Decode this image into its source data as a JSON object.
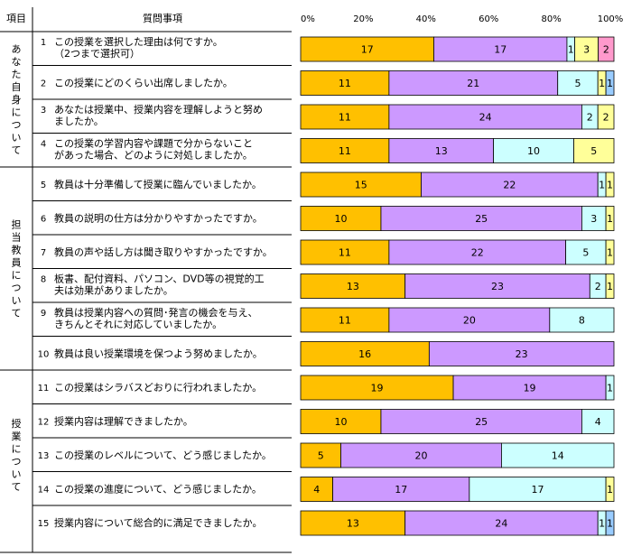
{
  "header": {
    "col_item": "項目",
    "col_question": "質問事項"
  },
  "categories": [
    {
      "label": "あなた自身について",
      "rows": [
        0,
        3
      ]
    },
    {
      "label": "担当教員について",
      "rows": [
        4,
        9
      ]
    },
    {
      "label": "授業について",
      "rows": [
        10,
        14
      ]
    }
  ],
  "questions": [
    {
      "num": "1",
      "lines": [
        "この授業を選択した理由は何ですか。",
        "（2つまで選択可）"
      ]
    },
    {
      "num": "2",
      "lines": [
        "この授業にどのくらい出席しましたか。"
      ]
    },
    {
      "num": "3",
      "lines": [
        "あなたは授業中、授業内容を理解しようと努め",
        "ましたか。"
      ]
    },
    {
      "num": "4",
      "lines": [
        "この授業の学習内容や課題で分からないこと",
        "があった場合、どのように対処しましたか。"
      ]
    },
    {
      "num": "5",
      "lines": [
        "教員は十分準備して授業に臨んでいましたか。"
      ]
    },
    {
      "num": "6",
      "lines": [
        "教員の説明の仕方は分かりやすかったですか。"
      ]
    },
    {
      "num": "7",
      "lines": [
        "教員の声や話し方は聞き取りやすかったですか。"
      ]
    },
    {
      "num": "8",
      "lines": [
        "板書、配付資料、パソコン、DVD等の視覚的工",
        "夫は効果がありましたか。"
      ]
    },
    {
      "num": "9",
      "lines": [
        "教員は授業内容への質問･発言の機会を与え、",
        "きちんとそれに対応していましたか。"
      ]
    },
    {
      "num": "10",
      "lines": [
        "教員は良い授業環境を保つよう努めましたか。"
      ]
    },
    {
      "num": "11",
      "lines": [
        "この授業はシラバスどおりに行われましたか。"
      ]
    },
    {
      "num": "12",
      "lines": [
        "授業内容は理解できましたか。"
      ]
    },
    {
      "num": "13",
      "lines": [
        "この授業のレベルについて、どう感じましたか。"
      ]
    },
    {
      "num": "14",
      "lines": [
        "この授業の進度について、どう感じましたか。"
      ]
    },
    {
      "num": "15",
      "lines": [
        "授業内容について総合的に満足できましたか。"
      ]
    }
  ],
  "chart_data": {
    "type": "bar",
    "orientation": "horizontal",
    "stacked": true,
    "normalized": "percent",
    "x_ticks": [
      "0%",
      "20%",
      "40%",
      "60%",
      "80%",
      "100%"
    ],
    "xlim": [
      0,
      100
    ],
    "colors": [
      "#FFC000",
      "#CC99FF",
      "#CCFFFF",
      "#FFFF99",
      "#FF99CC",
      "#99CCFF"
    ],
    "rows": [
      [
        17,
        17,
        1,
        3,
        2
      ],
      [
        11,
        21,
        5,
        1,
        0,
        1
      ],
      [
        11,
        24,
        2,
        2
      ],
      [
        11,
        13,
        10,
        5
      ],
      [
        15,
        22,
        1,
        1
      ],
      [
        10,
        25,
        3,
        1
      ],
      [
        11,
        22,
        5,
        1
      ],
      [
        13,
        23,
        2,
        1
      ],
      [
        11,
        20,
        8
      ],
      [
        16,
        23
      ],
      [
        19,
        19,
        1
      ],
      [
        10,
        25,
        4
      ],
      [
        5,
        20,
        14
      ],
      [
        4,
        17,
        17,
        1
      ],
      [
        13,
        24,
        1,
        0,
        0,
        1
      ]
    ]
  }
}
